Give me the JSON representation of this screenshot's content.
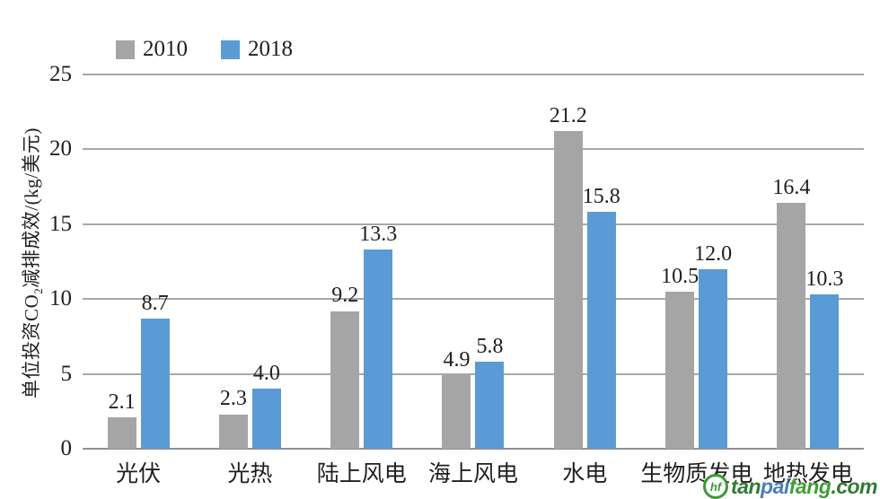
{
  "chart_data": {
    "type": "bar",
    "title": "",
    "ylabel": {
      "text": "单位投资CO2减排成效/(kg/美元)",
      "prefix": "单位投资CO",
      "sub": "2",
      "suffix": "减排成效/(kg/美元)"
    },
    "xlabel": "",
    "ylim": [
      0,
      25
    ],
    "yticks": [
      0,
      5,
      10,
      15,
      20,
      25
    ],
    "grid": true,
    "legend_position": "top-left",
    "categories": [
      "光伏",
      "光热",
      "陆上风电",
      "海上风电",
      "水电",
      "生物质发电",
      "地热发电"
    ],
    "series": [
      {
        "name": "2010",
        "color": "#A5A5A5",
        "values": [
          2.1,
          2.3,
          9.2,
          4.9,
          21.2,
          10.5,
          16.4
        ],
        "labels": [
          "2.1",
          "2.3",
          "9.2",
          "4.9",
          "21.2",
          "10.5",
          "16.4"
        ]
      },
      {
        "name": "2018",
        "color": "#5B9BD5",
        "values": [
          8.7,
          4.0,
          13.3,
          5.8,
          15.8,
          12.0,
          10.3
        ],
        "labels": [
          "8.7",
          "4.0",
          "13.3",
          "5.8",
          "15.8",
          "12.0",
          "10.3"
        ]
      }
    ],
    "axis_color": "#8f8f8f",
    "gridline_color": "#a8a8a8"
  },
  "watermark": {
    "icon_label": "hf",
    "icon_color": "#3c9a35",
    "parts": [
      {
        "text": "tan",
        "color": "#2e7d32"
      },
      {
        "text": "pai",
        "color": "#4a7ebb"
      },
      {
        "text": "fang",
        "color": "#3fa037"
      },
      {
        "text": ".com",
        "color": "#2e7d32"
      }
    ]
  }
}
